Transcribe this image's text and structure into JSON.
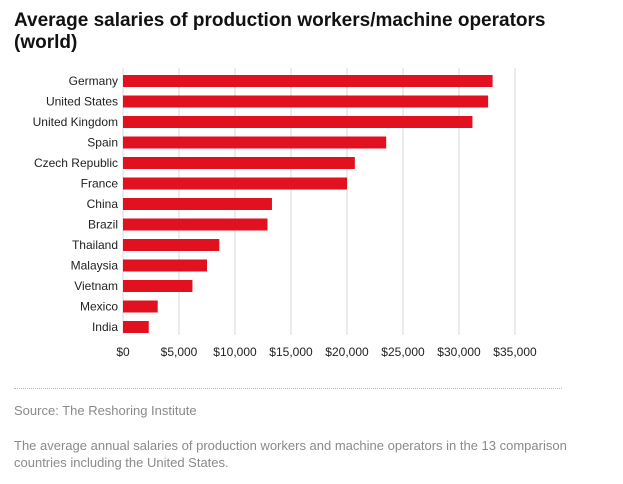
{
  "title": "Average salaries of production workers/machine operators (world)",
  "source": "Source: The Reshoring Institute",
  "caption": "The average annual salaries of production workers and machine operators in the 13 comparison countries including the United States.",
  "colors": {
    "bar": "#e2111f",
    "grid": "#d9d9d9",
    "text": "#222222"
  },
  "chart_data": {
    "type": "bar",
    "orientation": "horizontal",
    "categories": [
      "Germany",
      "United States",
      "United Kingdom",
      "Spain",
      "Czech Republic",
      "France",
      "China",
      "Brazil",
      "Thailand",
      "Malaysia",
      "Vietnam",
      "Mexico",
      "India"
    ],
    "values": [
      33000,
      32600,
      31200,
      23500,
      20700,
      20000,
      13300,
      12900,
      8600,
      7500,
      6200,
      3100,
      2300
    ],
    "xlim": [
      0,
      35000
    ],
    "xticks": [
      0,
      5000,
      10000,
      15000,
      20000,
      25000,
      30000,
      35000
    ],
    "xtick_labels": [
      "$0",
      "$5,000",
      "$10,000",
      "$15,000",
      "$20,000",
      "$25,000",
      "$30,000",
      "$35,000"
    ],
    "grid": "vertical",
    "legend": "none"
  }
}
